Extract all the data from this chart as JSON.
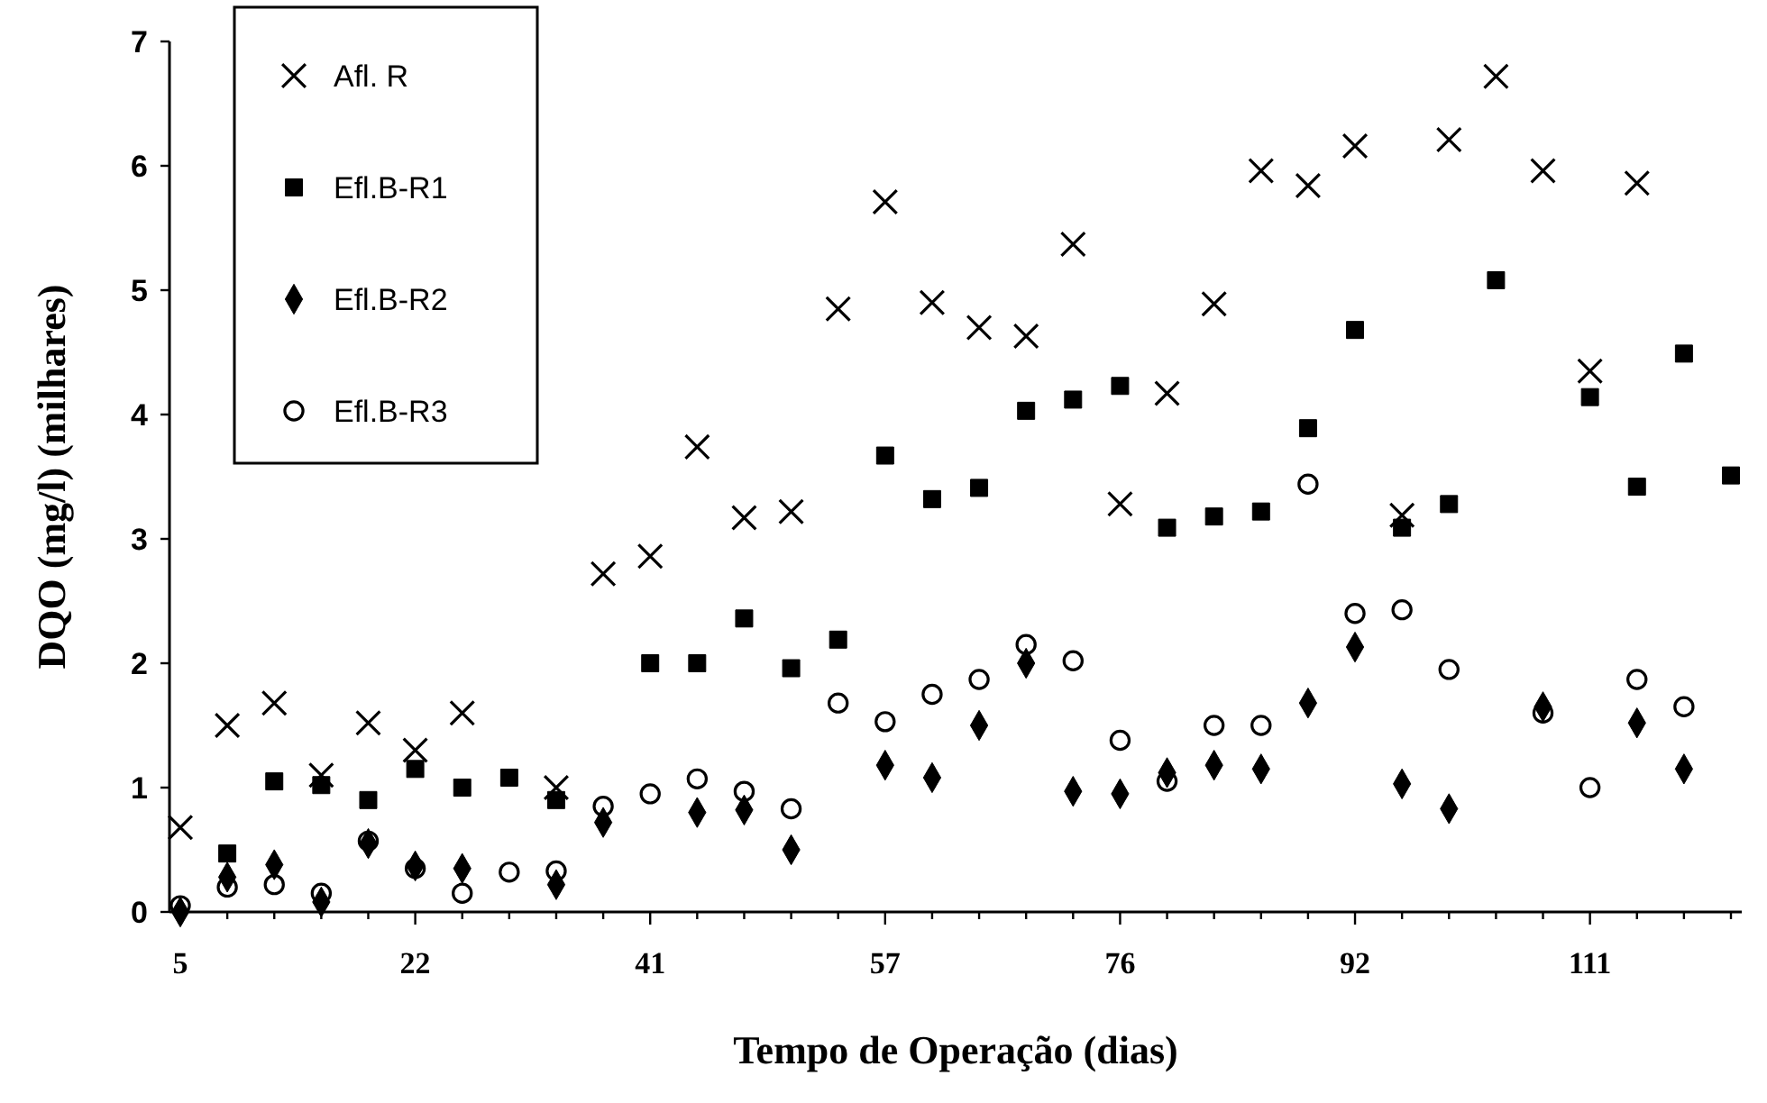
{
  "chart_data": {
    "type": "scatter",
    "xlabel": "Tempo de Operação (dias)",
    "ylabel": "DQO (mg/l) (milhares)",
    "categories": [
      "5",
      null,
      null,
      null,
      null,
      "22",
      null,
      null,
      null,
      null,
      "41",
      null,
      null,
      null,
      null,
      "57",
      null,
      null,
      null,
      null,
      "76",
      null,
      null,
      null,
      null,
      "92",
      null,
      null,
      null,
      null,
      "111",
      null,
      null,
      null
    ],
    "ylim": [
      0,
      7
    ],
    "yticks": [
      0,
      1,
      2,
      3,
      4,
      5,
      6,
      7
    ],
    "grid": false,
    "legend": "top left",
    "series": [
      {
        "name": "Afl. R",
        "color": "#000000",
        "marker": "cross",
        "values": [
          0.68,
          1.5,
          1.68,
          1.1,
          1.52,
          1.3,
          1.6,
          null,
          1.0,
          2.72,
          2.86,
          3.74,
          3.17,
          3.22,
          4.85,
          5.71,
          4.9,
          4.7,
          4.63,
          5.37,
          3.28,
          4.17,
          4.89,
          5.96,
          5.84,
          6.16,
          3.19,
          6.21,
          6.72,
          5.96,
          4.35,
          5.86,
          null,
          null
        ]
      },
      {
        "name": "Efl.B-R1",
        "color": "#000000",
        "marker": "square",
        "values": [
          null,
          0.47,
          1.05,
          1.02,
          0.9,
          1.15,
          1.0,
          1.08,
          0.9,
          null,
          2.0,
          2.0,
          2.36,
          1.96,
          2.19,
          3.67,
          3.32,
          3.41,
          4.03,
          4.12,
          4.23,
          3.09,
          3.18,
          3.22,
          3.89,
          4.68,
          3.09,
          3.28,
          5.08,
          null,
          4.14,
          3.42,
          4.49,
          3.51
        ]
      },
      {
        "name": "Efl.B-R2",
        "color": "#000000",
        "marker": "diamond",
        "values": [
          0.0,
          0.28,
          0.38,
          0.08,
          0.55,
          0.37,
          0.35,
          null,
          0.22,
          0.72,
          null,
          0.8,
          0.82,
          0.5,
          null,
          1.18,
          1.08,
          1.5,
          2.0,
          0.97,
          0.95,
          1.12,
          1.18,
          1.15,
          1.68,
          2.13,
          1.03,
          0.83,
          null,
          1.65,
          null,
          1.52,
          1.15,
          null
        ]
      },
      {
        "name": "Efl.B-R3",
        "color": "#000000",
        "marker": "circle",
        "values": [
          0.05,
          0.2,
          0.22,
          0.15,
          0.57,
          0.35,
          0.15,
          0.32,
          0.33,
          0.85,
          0.95,
          1.07,
          0.97,
          0.83,
          1.68,
          1.53,
          1.75,
          1.87,
          2.15,
          2.02,
          1.38,
          1.05,
          1.5,
          1.5,
          3.44,
          2.4,
          2.43,
          1.95,
          null,
          1.6,
          1.0,
          1.87,
          1.65,
          null
        ]
      }
    ]
  }
}
